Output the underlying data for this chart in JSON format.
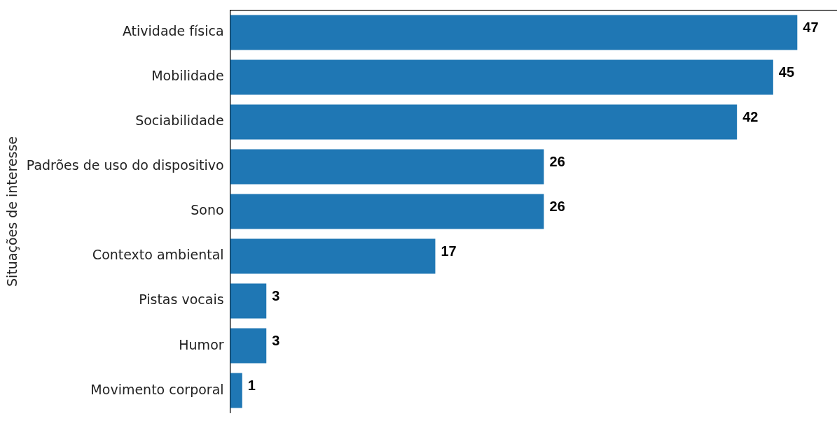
{
  "chart_data": {
    "type": "bar",
    "orientation": "horizontal",
    "ylabel": "Situações de interesse",
    "categories": [
      "Atividade física",
      "Mobilidade",
      "Sociabilidade",
      "Padrões de uso do dispositivo",
      "Sono",
      "Contexto ambiental",
      "Pistas vocais",
      "Humor",
      "Movimento corporal"
    ],
    "values": [
      47,
      45,
      42,
      26,
      26,
      17,
      3,
      3,
      1
    ],
    "color": "#1f77b4",
    "data_labels": true,
    "grid": false,
    "legend": false
  }
}
